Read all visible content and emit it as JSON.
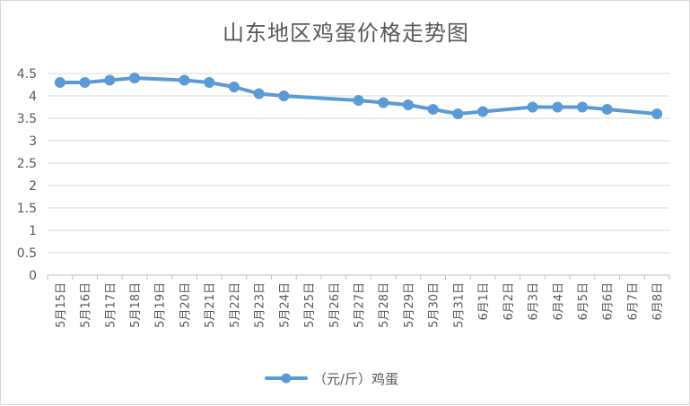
{
  "chart_data": {
    "type": "line",
    "title": "山东地区鸡蛋价格走势图",
    "xlabel": "",
    "ylabel": "",
    "ylim": [
      0,
      4.5
    ],
    "y_ticks": [
      "0",
      "0.5",
      "1",
      "1.5",
      "2",
      "2.5",
      "3",
      "3.5",
      "4",
      "4.5"
    ],
    "grid": true,
    "legend_position": "bottom",
    "categories": [
      "5月15日",
      "5月16日",
      "5月17日",
      "5月18日",
      "5月19日",
      "5月20日",
      "5月21日",
      "5月22日",
      "5月23日",
      "5月24日",
      "5月25日",
      "5月26日",
      "5月27日",
      "5月28日",
      "5月29日",
      "5月30日",
      "5月31日",
      "6月1日",
      "6月2日",
      "6月3日",
      "6月4日",
      "6月5日",
      "6月6日",
      "6月7日",
      "6月8日"
    ],
    "series": [
      {
        "name": "（元/斤）鸡蛋",
        "color": "#5b9bd5",
        "values": [
          4.3,
          4.3,
          4.35,
          4.4,
          null,
          4.35,
          4.3,
          4.2,
          4.05,
          4.0,
          null,
          null,
          3.9,
          3.85,
          3.8,
          3.7,
          3.6,
          3.65,
          null,
          3.75,
          3.75,
          3.75,
          3.7,
          null,
          3.6
        ]
      }
    ]
  }
}
